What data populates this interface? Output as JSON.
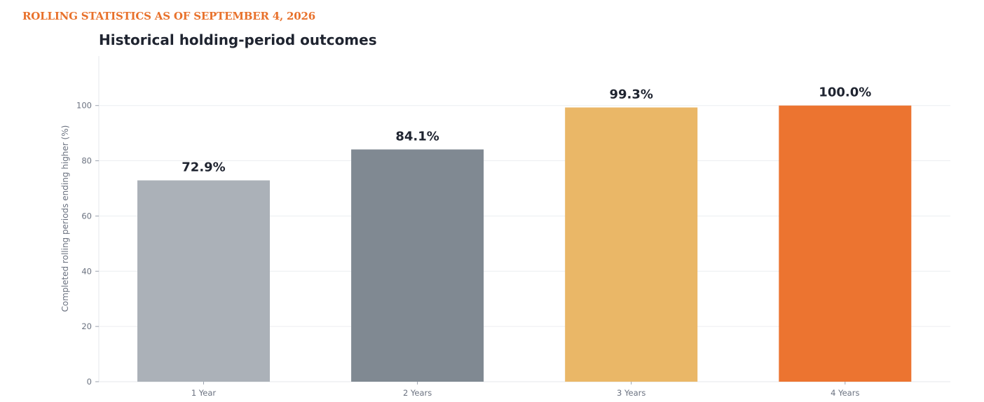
{
  "header": {
    "kicker": "ROLLING STATISTICS AS OF SEPTEMBER 4, 2026"
  },
  "chart_data": {
    "type": "bar",
    "title": "Historical holding-period outcomes",
    "xlabel": "",
    "ylabel": "Completed rolling periods ending higher (%)",
    "categories": [
      "1 Year",
      "2 Years",
      "3 Years",
      "4 Years"
    ],
    "values": [
      72.9,
      84.1,
      99.3,
      100.0
    ],
    "data_labels": [
      "72.9%",
      "84.1%",
      "99.3%",
      "100.0%"
    ],
    "colors": [
      "#abb1b8",
      "#808992",
      "#eab767",
      "#ec7430"
    ],
    "ylim": [
      0,
      118
    ],
    "yticks": [
      0,
      20,
      40,
      60,
      80,
      100
    ],
    "grid": true,
    "legend": "none"
  }
}
